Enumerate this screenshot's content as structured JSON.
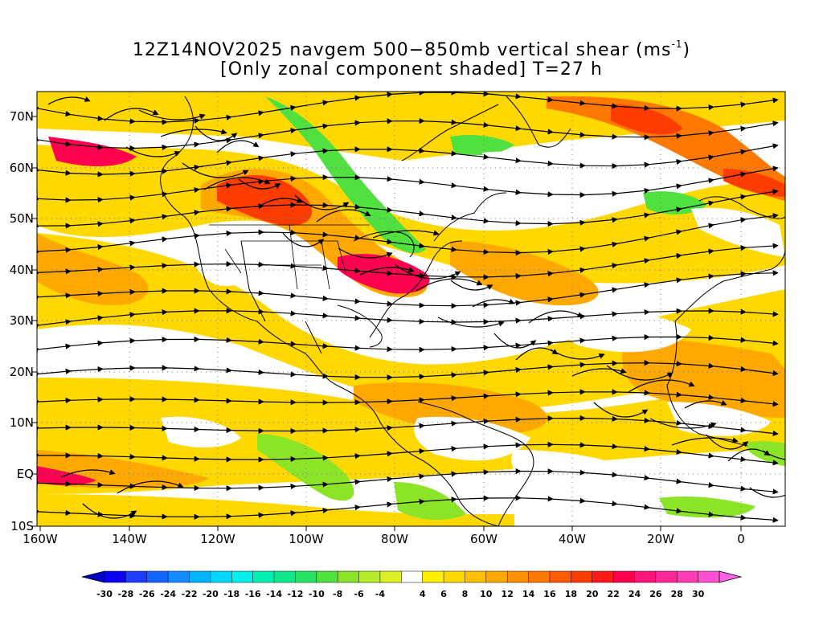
{
  "title": {
    "line1_prefix": "12Z14NOV2025 navgem 500−850mb vertical shear (ms",
    "line1_sup": "-1",
    "line1_suffix": ")",
    "line2": "[Only zonal component shaded] T=27 h"
  },
  "axes": {
    "lat_labels": [
      "70N",
      "60N",
      "50N",
      "40N",
      "30N",
      "20N",
      "10N",
      "EQ",
      "10S"
    ],
    "lon_labels": [
      "160W",
      "140W",
      "120W",
      "100W",
      "80W",
      "60W",
      "40W",
      "20W",
      "0"
    ]
  },
  "colorbar": {
    "ticks": [
      "-30",
      "-28",
      "-26",
      "-24",
      "-22",
      "-20",
      "-18",
      "-16",
      "-14",
      "-12",
      "-10",
      "-8",
      "-6",
      "-4",
      "4",
      "6",
      "8",
      "10",
      "12",
      "14",
      "16",
      "18",
      "20",
      "22",
      "24",
      "26",
      "28",
      "30"
    ],
    "colors": [
      "#0b00f0",
      "#1e3cff",
      "#1464ff",
      "#148cff",
      "#00b4ff",
      "#00d8ff",
      "#00f0ec",
      "#00f0b4",
      "#10e88c",
      "#28e464",
      "#50e040",
      "#8ce428",
      "#b4ec28",
      "#dcf028",
      "#ffffff",
      "#fff000",
      "#ffd800",
      "#ffc000",
      "#ffa800",
      "#ff9000",
      "#ff7800",
      "#ff5a00",
      "#ff3c00",
      "#ff1a1a",
      "#ff0050",
      "#ff1478",
      "#ff2896",
      "#ff3cb4",
      "#ff50d2"
    ],
    "arrow_left_color": "#0000c8",
    "arrow_right_color": "#ff64e6"
  },
  "map_colors": {
    "weak_positive": "#ffffff",
    "light_yellow": "#fff000",
    "yellow": "#ffd800",
    "orange_light": "#ffa800",
    "orange": "#ff7800",
    "red": "#ff3c00",
    "magenta": "#ff0050",
    "green": "#50e040",
    "green_light": "#8ce428"
  }
}
